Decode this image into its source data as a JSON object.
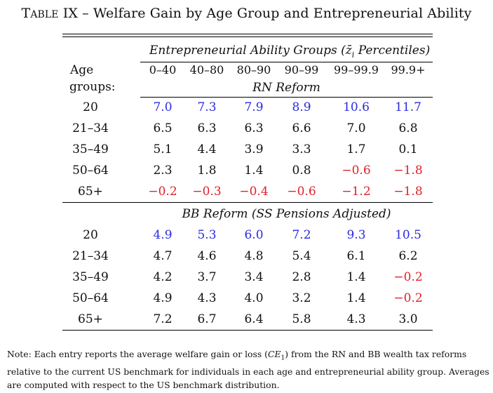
{
  "title": {
    "table_word_first": "T",
    "table_word_rest": "able",
    "number": "IX",
    "dash": "–",
    "text": "Welfare Gain by Age Group and Entrepreneurial Ability"
  },
  "header": {
    "group_title_pre": "Entrepreneurial Ability Groups (",
    "group_title_sym": "z̄",
    "group_title_sub": "i",
    "group_title_post": " Percentiles)",
    "age_label_1": "Age",
    "age_label_2": "groups:",
    "columns": [
      "0–40",
      "40–80",
      "80–90",
      "90–99",
      "99–99.9",
      "99.9+"
    ]
  },
  "panels": [
    {
      "label": "RN Reform",
      "rows": [
        {
          "age": "20",
          "values": [
            "7.0",
            "7.3",
            "7.9",
            "8.9",
            "10.6",
            "11.7"
          ],
          "colors": [
            "blue",
            "blue",
            "blue",
            "blue",
            "blue",
            "blue"
          ]
        },
        {
          "age": "21–34",
          "values": [
            "6.5",
            "6.3",
            "6.3",
            "6.6",
            "7.0",
            "6.8"
          ],
          "colors": [
            "black",
            "black",
            "black",
            "black",
            "black",
            "black"
          ]
        },
        {
          "age": "35–49",
          "values": [
            "5.1",
            "4.4",
            "3.9",
            "3.3",
            "1.7",
            "0.1"
          ],
          "colors": [
            "black",
            "black",
            "black",
            "black",
            "black",
            "black"
          ]
        },
        {
          "age": "50–64",
          "values": [
            "2.3",
            "1.8",
            "1.4",
            "0.8",
            "−0.6",
            "−1.8"
          ],
          "colors": [
            "black",
            "black",
            "black",
            "black",
            "red",
            "red"
          ]
        },
        {
          "age": "65+",
          "values": [
            "−0.2",
            "−0.3",
            "−0.4",
            "−0.6",
            "−1.2",
            "−1.8"
          ],
          "colors": [
            "red",
            "red",
            "red",
            "red",
            "red",
            "red"
          ]
        }
      ]
    },
    {
      "label": "BB Reform (SS Pensions Adjusted)",
      "rows": [
        {
          "age": "20",
          "values": [
            "4.9",
            "5.3",
            "6.0",
            "7.2",
            "9.3",
            "10.5"
          ],
          "colors": [
            "blue",
            "blue",
            "blue",
            "blue",
            "blue",
            "blue"
          ]
        },
        {
          "age": "21–34",
          "values": [
            "4.7",
            "4.6",
            "4.8",
            "5.4",
            "6.1",
            "6.2"
          ],
          "colors": [
            "black",
            "black",
            "black",
            "black",
            "black",
            "black"
          ]
        },
        {
          "age": "35–49",
          "values": [
            "4.2",
            "3.7",
            "3.4",
            "2.8",
            "1.4",
            "−0.2"
          ],
          "colors": [
            "black",
            "black",
            "black",
            "black",
            "black",
            "red"
          ]
        },
        {
          "age": "50–64",
          "values": [
            "4.9",
            "4.3",
            "4.0",
            "3.2",
            "1.4",
            "−0.2"
          ],
          "colors": [
            "black",
            "black",
            "black",
            "black",
            "black",
            "red"
          ]
        },
        {
          "age": "65+",
          "values": [
            "7.2",
            "6.7",
            "6.4",
            "5.8",
            "4.3",
            "3.0"
          ],
          "colors": [
            "black",
            "black",
            "black",
            "black",
            "black",
            "black"
          ]
        }
      ]
    }
  ],
  "note": {
    "pre": "Note: Each entry reports the average welfare gain or loss (",
    "ce_main": "CE",
    "ce_sub": "1",
    "post": ") from the RN and BB wealth tax reforms relative to the current US benchmark for individuals in each age and entrepreneurial ability group. Averages are computed with respect to the US benchmark distribution."
  },
  "colors": {
    "positive_young": "#2a2ae0",
    "negative": "#e0202a",
    "text": "#111111"
  }
}
